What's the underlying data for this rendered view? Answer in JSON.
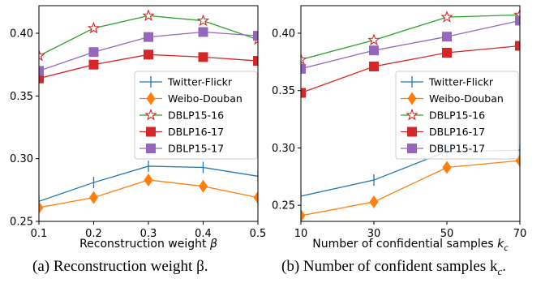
{
  "chart_data": [
    {
      "type": "line",
      "panel_label": "(a)",
      "caption": "(a) Reconstruction weight β.",
      "xlabel": "Reconstruction weight β",
      "ylabel": "",
      "x": [
        0.1,
        0.2,
        0.3,
        0.4,
        0.5
      ],
      "xticks": [
        "0.1",
        "0.2",
        "0.3",
        "0.4",
        "0.5"
      ],
      "xlim": [
        0.1,
        0.5
      ],
      "yticks": [
        "0.25",
        "0.30",
        "0.35",
        "0.40"
      ],
      "ytick_values": [
        0.25,
        0.3,
        0.35,
        0.4
      ],
      "ylim": [
        0.25,
        0.422
      ],
      "grid": false,
      "legend": "center-right",
      "series": [
        {
          "name": "Twitter-Flickr",
          "color": "#1f77b4",
          "marker": "vline",
          "values": [
            0.266,
            0.281,
            0.294,
            0.293,
            0.286
          ]
        },
        {
          "name": "Weibo-Douban",
          "color": "#ff7f0e",
          "marker": "diamond",
          "values": [
            0.261,
            0.269,
            0.283,
            0.278,
            0.269
          ]
        },
        {
          "name": "DBLP15-16",
          "color": "#2ca02c",
          "marker": "star",
          "values": [
            0.382,
            0.404,
            0.414,
            0.41,
            0.395
          ]
        },
        {
          "name": "DBLP16-17",
          "color": "#d62728",
          "marker": "square",
          "values": [
            0.364,
            0.375,
            0.383,
            0.381,
            0.378
          ]
        },
        {
          "name": "DBLP15-17",
          "color": "#9467bd",
          "marker": "square",
          "values": [
            0.37,
            0.385,
            0.397,
            0.401,
            0.398
          ]
        }
      ]
    },
    {
      "type": "line",
      "panel_label": "(b)",
      "caption": "(b) Number of confident samples k",
      "caption_sub": "c",
      "caption_end": ".",
      "xlabel": "Number of confidential samples k",
      "xlabel_sub": "c",
      "ylabel": "",
      "x": [
        10,
        30,
        50,
        70
      ],
      "xticks": [
        "10",
        "30",
        "50",
        "70"
      ],
      "xlim": [
        10,
        70
      ],
      "yticks": [
        "0.25",
        "0.30",
        "0.35",
        "0.40"
      ],
      "ytick_values": [
        0.25,
        0.3,
        0.35,
        0.4
      ],
      "ylim": [
        0.236,
        0.424
      ],
      "grid": false,
      "legend": "center-right",
      "series": [
        {
          "name": "Twitter-Flickr",
          "color": "#1f77b4",
          "marker": "vline",
          "values": [
            0.258,
            0.272,
            0.297,
            0.298
          ]
        },
        {
          "name": "Weibo-Douban",
          "color": "#ff7f0e",
          "marker": "diamond",
          "values": [
            0.241,
            0.253,
            0.283,
            0.289
          ]
        },
        {
          "name": "DBLP15-16",
          "color": "#2ca02c",
          "marker": "star",
          "values": [
            0.377,
            0.394,
            0.414,
            0.416
          ]
        },
        {
          "name": "DBLP16-17",
          "color": "#d62728",
          "marker": "square",
          "values": [
            0.348,
            0.371,
            0.383,
            0.389
          ]
        },
        {
          "name": "DBLP15-17",
          "color": "#9467bd",
          "marker": "square",
          "values": [
            0.369,
            0.385,
            0.397,
            0.411
          ]
        }
      ]
    }
  ]
}
